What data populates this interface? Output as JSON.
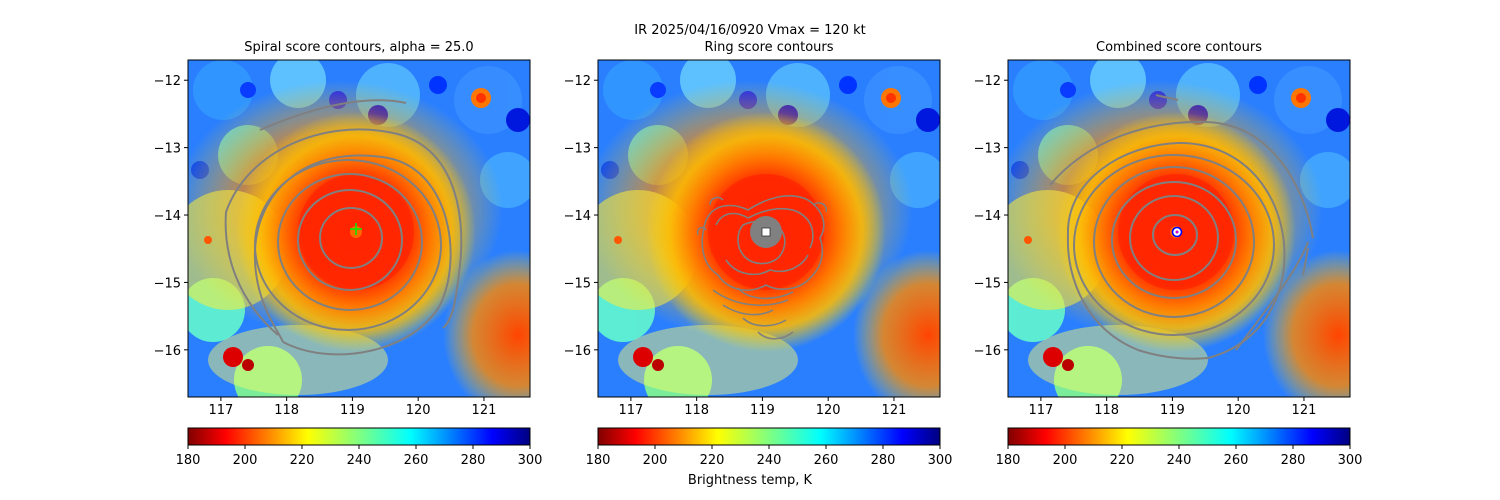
{
  "suptitle": {
    "line": "IR  2025/04/16/0920    Vmax = 120 kt"
  },
  "colorbar": {
    "label": "Brightness temp, K",
    "ticks": [
      180,
      200,
      220,
      240,
      260,
      280,
      300
    ],
    "range": [
      180,
      300
    ],
    "colormap": "jet"
  },
  "chart_data": [
    {
      "type": "heatmap",
      "title": "Spiral score contours, alpha = 25.0",
      "xlim": [
        116.5,
        121.7
      ],
      "ylim": [
        -16.7,
        -11.7
      ],
      "xticks": [
        117,
        118,
        119,
        120,
        121
      ],
      "yticks": [
        -12,
        -13,
        -14,
        -15,
        -16
      ],
      "grid": false,
      "center": {
        "x": 119.05,
        "y": -14.2
      },
      "center_marker": "green-plus",
      "contour_color": "#808080"
    },
    {
      "type": "heatmap",
      "title": "Ring score contours",
      "xlim": [
        116.5,
        121.7
      ],
      "ylim": [
        -16.7,
        -11.7
      ],
      "xticks": [
        117,
        118,
        119,
        120,
        121
      ],
      "yticks": [
        -12,
        -13,
        -14,
        -15,
        -16
      ],
      "grid": false,
      "center": {
        "x": 119.05,
        "y": -14.25
      },
      "center_marker": "white-square",
      "contour_color": "#808080"
    },
    {
      "type": "heatmap",
      "title": "Combined score contours",
      "xlim": [
        116.5,
        121.7
      ],
      "ylim": [
        -16.7,
        -11.7
      ],
      "xticks": [
        117,
        118,
        119,
        120,
        121
      ],
      "yticks": [
        -12,
        -13,
        -14,
        -15,
        -16
      ],
      "grid": false,
      "center": {
        "x": 119.05,
        "y": -14.25
      },
      "center_marker": "blue-circle",
      "contour_color": "#808080"
    }
  ]
}
